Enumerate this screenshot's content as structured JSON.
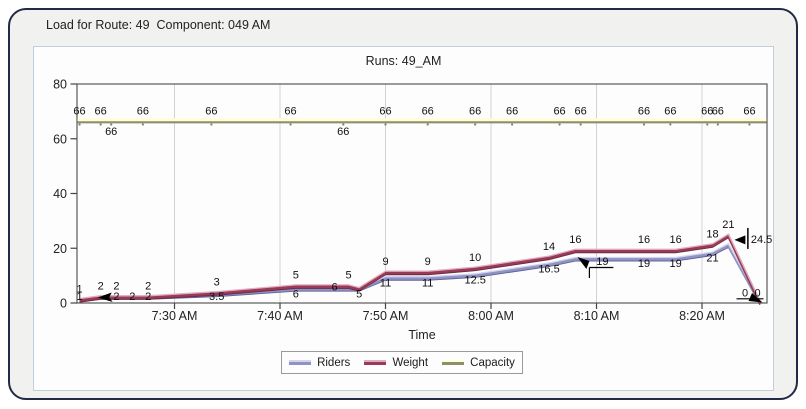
{
  "window": {
    "title": "Load for Route: 49  Component: 049 AM"
  },
  "chart": {
    "subtitle": "Runs: 49_AM",
    "xlabel": "Time"
  },
  "legend": {
    "items": [
      {
        "label": "Riders",
        "color": "#8f92c4",
        "highlight": "#d3d4ec"
      },
      {
        "label": "Weight",
        "color": "#9a3a57",
        "highlight": "#dfadc0"
      },
      {
        "label": "Capacity",
        "color": "#8e8e6d",
        "highlight": "#ffffd6"
      }
    ]
  },
  "chart_data": {
    "type": "line",
    "title": "Runs: 49_AM",
    "xlabel": "Time",
    "ylabel": "",
    "ylim": [
      0,
      80
    ],
    "yticks": [
      0,
      20,
      40,
      60,
      80
    ],
    "x_unit": "minutes after 7:00 AM",
    "xticks": [
      {
        "minutes": 30,
        "label": "7:30 AM"
      },
      {
        "minutes": 40,
        "label": "7:40 AM"
      },
      {
        "minutes": 50,
        "label": "7:50 AM"
      },
      {
        "minutes": 60,
        "label": "8:00 AM"
      },
      {
        "minutes": 70,
        "label": "8:10 AM"
      },
      {
        "minutes": 80,
        "label": "8:20 AM"
      }
    ],
    "grid": "vertical-only",
    "legend_position": "bottom-center",
    "series": [
      {
        "name": "Riders",
        "color": "#8f92c4",
        "highlight": "#d3d4ec",
        "shadow": "#5f6396",
        "label_side": "above",
        "points": [
          [
            21,
            1
          ],
          [
            23,
            2
          ],
          [
            24.5,
            2
          ],
          [
            26,
            2
          ],
          [
            27.5,
            2
          ],
          [
            34,
            3
          ],
          [
            41.5,
            5
          ],
          [
            46.5,
            5
          ],
          [
            47.5,
            5
          ],
          [
            50,
            9
          ],
          [
            54,
            9
          ],
          [
            58.5,
            10
          ],
          [
            65.5,
            14
          ],
          [
            68,
            16
          ],
          [
            74.5,
            16
          ],
          [
            77.5,
            16
          ],
          [
            81,
            18
          ],
          [
            82.5,
            21
          ],
          [
            85.5,
            0
          ]
        ],
        "labels": [
          "1",
          "2",
          "2",
          "",
          "2",
          "3",
          "5",
          "5",
          "",
          "9",
          "9",
          "10",
          "14",
          "16",
          "16",
          "16",
          "18",
          "21",
          ""
        ]
      },
      {
        "name": "Weight",
        "color": "#9a3a57",
        "highlight": "#dfadc0",
        "shadow": "#6d2940",
        "label_side": "below",
        "points": [
          [
            21,
            1
          ],
          [
            23,
            2
          ],
          [
            24.5,
            2
          ],
          [
            26,
            2
          ],
          [
            27.5,
            2
          ],
          [
            34,
            3.5
          ],
          [
            41.5,
            6
          ],
          [
            46.5,
            6
          ],
          [
            47.5,
            5
          ],
          [
            50,
            11
          ],
          [
            54,
            11
          ],
          [
            58.5,
            12.5
          ],
          [
            65.5,
            16.5
          ],
          [
            68,
            19
          ],
          [
            74.5,
            19
          ],
          [
            77.5,
            19
          ],
          [
            81,
            21
          ],
          [
            82.5,
            24.5
          ],
          [
            85.5,
            0
          ]
        ],
        "labels": [
          "1",
          "",
          "2",
          "2",
          "2",
          "3.5",
          "6",
          "6",
          "5",
          "11",
          "11",
          "12.5",
          "16.5",
          "",
          "19",
          "19",
          "21",
          "",
          ""
        ],
        "label_pos_overrides": [
          {
            "index": 7,
            "pos": "left"
          }
        ]
      },
      {
        "name": "Capacity",
        "color": "#8e8e6d",
        "highlight": "#ffffd6",
        "value": 66,
        "label_text": "66",
        "label_minutes_above": [
          21,
          23,
          27,
          33.5,
          41,
          50,
          54,
          58.5,
          62,
          66.5,
          68.5,
          74.5,
          77,
          80.5,
          81.5,
          84.5
        ],
        "label_minutes_below": [
          24,
          46
        ]
      }
    ],
    "annotations": [
      {
        "type": "arrow-left",
        "t": 24,
        "v": 2,
        "text": ""
      },
      {
        "type": "arrow-bracket",
        "t": 68,
        "v": 19,
        "text": "19"
      },
      {
        "type": "arrow-bar",
        "t": 82.5,
        "v": 24.5,
        "text": "24.5"
      },
      {
        "type": "end-drop",
        "t": 85.5,
        "v": 0,
        "texts": [
          "0",
          "0"
        ]
      }
    ]
  }
}
